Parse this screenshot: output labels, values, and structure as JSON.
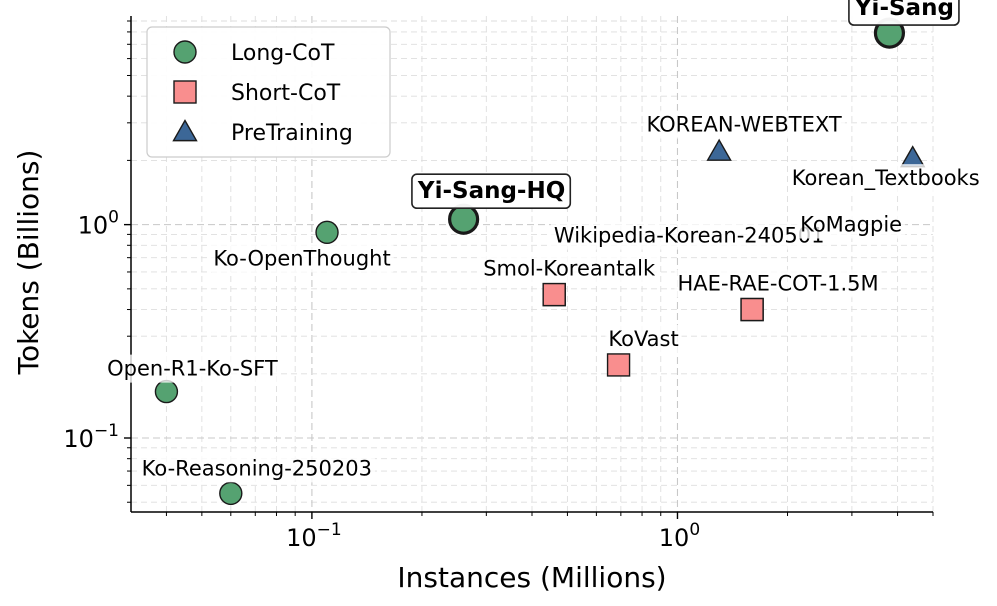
{
  "chart_data": {
    "type": "scatter",
    "xlabel": "Instances (Millions)",
    "ylabel": "Tokens (Billions)",
    "xscale": "log",
    "yscale": "log",
    "xlim": [
      0.032,
      5.0
    ],
    "ylim": [
      0.045,
      9.5
    ],
    "grid": true,
    "legend_position": "top-left",
    "x_ticks": [
      {
        "value": 0.1,
        "base": "10",
        "exp": "−1"
      },
      {
        "value": 1,
        "base": "10",
        "exp": "0"
      }
    ],
    "y_ticks": [
      {
        "value": 0.1,
        "base": "10",
        "exp": "−1"
      },
      {
        "value": 1,
        "base": "10",
        "exp": "0"
      }
    ],
    "series": [
      {
        "name": "Long-CoT",
        "marker": "circle",
        "color": "#55a271",
        "points": [
          {
            "label": "Yi-Sang",
            "x": 3.8,
            "y": 7.9,
            "highlight": true
          },
          {
            "label": "Yi-Sang-HQ",
            "x": 0.26,
            "y": 1.06,
            "highlight": true
          },
          {
            "label": "Ko-OpenThought",
            "x": 0.11,
            "y": 0.92
          },
          {
            "label": "Open-R1-Ko-SFT",
            "x": 0.04,
            "y": 0.165
          },
          {
            "label": "Ko-Reasoning-250203",
            "x": 0.06,
            "y": 0.055
          }
        ]
      },
      {
        "name": "Short-CoT",
        "marker": "square",
        "color": "#f98e8e",
        "points": [
          {
            "label": "Smol-Koreantalk",
            "x": 0.46,
            "y": 0.47
          },
          {
            "label": "Wikipedia-Korean-240501",
            "x": 0.46,
            "y": 0.47
          },
          {
            "label": "HAE-RAE-COT-1.5M",
            "x": 1.6,
            "y": 0.4
          },
          {
            "label": "KoMagpie",
            "x": 1.6,
            "y": 0.4
          },
          {
            "label": "KoVast",
            "x": 0.69,
            "y": 0.22
          }
        ]
      },
      {
        "name": "PreTraining",
        "marker": "triangle",
        "color": "#3c6797",
        "points": [
          {
            "label": "KOREAN-WEBTEXT",
            "x": 1.3,
            "y": 2.2
          },
          {
            "label": "Korean_Textbooks",
            "x": 4.4,
            "y": 2.05
          }
        ]
      }
    ]
  }
}
